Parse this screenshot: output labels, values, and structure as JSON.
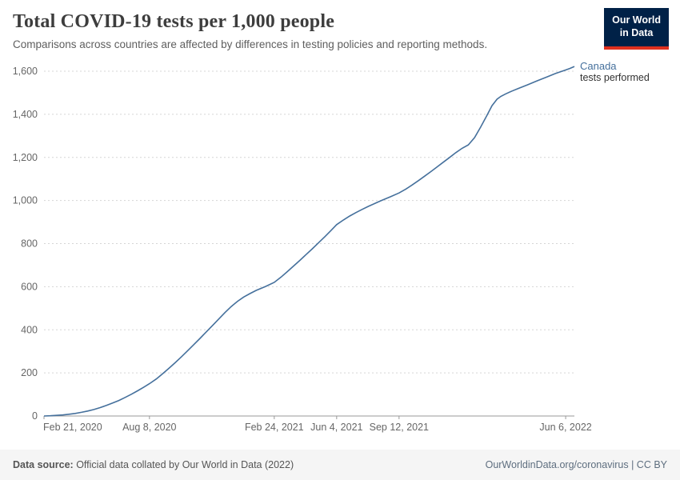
{
  "header": {
    "title": "Total COVID-19 tests per 1,000 people",
    "subtitle": "Comparisons across countries are affected by differences in testing policies and reporting methods.",
    "logo": {
      "line1": "Our World",
      "line2": "in Data",
      "bg_color": "#002147",
      "accent_color": "#e0301e"
    }
  },
  "chart_data": {
    "type": "line",
    "title": "Total COVID-19 tests per 1,000 people",
    "xlabel": "",
    "ylabel": "tests per 1,000 people",
    "x_unit": "days since Feb 21, 2020",
    "xlim": [
      0,
      850
    ],
    "ylim": [
      0,
      1600
    ],
    "grid": "horizontal-dashed",
    "legend_position": "end-of-line",
    "y_ticks": [
      {
        "value": 0,
        "label": "0"
      },
      {
        "value": 200,
        "label": "200"
      },
      {
        "value": 400,
        "label": "400"
      },
      {
        "value": 600,
        "label": "600"
      },
      {
        "value": 800,
        "label": "800"
      },
      {
        "value": 1000,
        "label": "1,000"
      },
      {
        "value": 1200,
        "label": "1,200"
      },
      {
        "value": 1400,
        "label": "1,400"
      },
      {
        "value": 1600,
        "label": "1,600"
      }
    ],
    "x_ticks": [
      {
        "day": 0,
        "label": "Feb 21, 2020"
      },
      {
        "day": 169,
        "label": "Aug 8, 2020"
      },
      {
        "day": 369,
        "label": "Feb 24, 2021"
      },
      {
        "day": 469,
        "label": "Jun 4, 2021"
      },
      {
        "day": 569,
        "label": "Sep 12, 2021"
      },
      {
        "day": 836,
        "label": "Jun 6, 2022"
      }
    ],
    "series": [
      {
        "name": "Canada",
        "annotation": "tests performed",
        "color": "#45709c",
        "points": [
          [
            0,
            0
          ],
          [
            10,
            1
          ],
          [
            20,
            3
          ],
          [
            30,
            5
          ],
          [
            40,
            8
          ],
          [
            50,
            12
          ],
          [
            60,
            17
          ],
          [
            70,
            23
          ],
          [
            80,
            30
          ],
          [
            90,
            39
          ],
          [
            100,
            49
          ],
          [
            110,
            60
          ],
          [
            120,
            72
          ],
          [
            130,
            86
          ],
          [
            140,
            101
          ],
          [
            150,
            117
          ],
          [
            160,
            134
          ],
          [
            169,
            150
          ],
          [
            180,
            172
          ],
          [
            190,
            196
          ],
          [
            200,
            221
          ],
          [
            210,
            247
          ],
          [
            220,
            274
          ],
          [
            230,
            302
          ],
          [
            240,
            331
          ],
          [
            250,
            360
          ],
          [
            260,
            390
          ],
          [
            270,
            420
          ],
          [
            280,
            450
          ],
          [
            290,
            480
          ],
          [
            300,
            508
          ],
          [
            310,
            532
          ],
          [
            320,
            552
          ],
          [
            330,
            568
          ],
          [
            340,
            583
          ],
          [
            355,
            601
          ],
          [
            369,
            620
          ],
          [
            380,
            645
          ],
          [
            390,
            670
          ],
          [
            400,
            696
          ],
          [
            410,
            722
          ],
          [
            420,
            749
          ],
          [
            430,
            776
          ],
          [
            440,
            804
          ],
          [
            450,
            832
          ],
          [
            460,
            861
          ],
          [
            469,
            888
          ],
          [
            480,
            910
          ],
          [
            490,
            928
          ],
          [
            500,
            944
          ],
          [
            510,
            959
          ],
          [
            520,
            973
          ],
          [
            530,
            986
          ],
          [
            540,
            999
          ],
          [
            555,
            1017
          ],
          [
            569,
            1035
          ],
          [
            580,
            1053
          ],
          [
            590,
            1072
          ],
          [
            600,
            1092
          ],
          [
            610,
            1113
          ],
          [
            620,
            1134
          ],
          [
            630,
            1156
          ],
          [
            640,
            1178
          ],
          [
            650,
            1200
          ],
          [
            660,
            1222
          ],
          [
            670,
            1242
          ],
          [
            680,
            1258
          ],
          [
            690,
            1292
          ],
          [
            700,
            1342
          ],
          [
            710,
            1396
          ],
          [
            718,
            1440
          ],
          [
            726,
            1470
          ],
          [
            732,
            1483
          ],
          [
            740,
            1495
          ],
          [
            750,
            1508
          ],
          [
            760,
            1520
          ],
          [
            775,
            1537
          ],
          [
            790,
            1555
          ],
          [
            805,
            1572
          ],
          [
            820,
            1590
          ],
          [
            835,
            1605
          ],
          [
            843,
            1613
          ],
          [
            850,
            1622
          ]
        ]
      }
    ],
    "colors": {
      "grid": "#d5d5d5",
      "axis": "#999999",
      "tick_label": "#666666",
      "annotation": "#333333"
    }
  },
  "footer": {
    "source_label": "Data source:",
    "source_text": " Official data collated by Our World in Data (2022)",
    "credit": "OurWorldinData.org/coronavirus | CC BY"
  }
}
